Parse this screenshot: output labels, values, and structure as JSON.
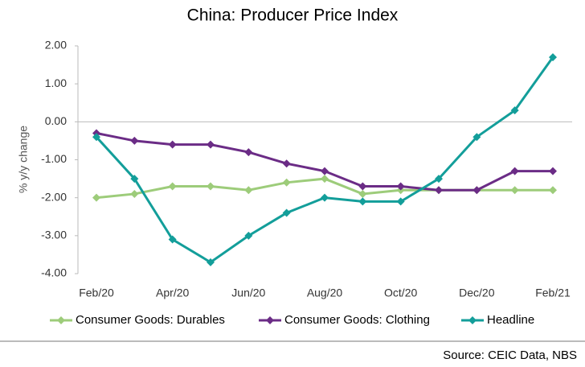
{
  "chart_data": {
    "type": "line",
    "title": "China: Producer Price Index",
    "y_label": "% y/y change",
    "source": "Source: CEIC Data, NBS",
    "categories": [
      "Feb/20",
      null,
      "Apr/20",
      null,
      "Jun/20",
      null,
      "Aug/20",
      null,
      "Oct/20",
      null,
      "Dec/20",
      null,
      "Feb/21"
    ],
    "series": [
      {
        "name": "Consumer Goods: Durables",
        "color": "#9dcc7a",
        "values": [
          -2.0,
          -1.9,
          -1.7,
          -1.7,
          -1.8,
          -1.6,
          -1.5,
          -1.9,
          -1.8,
          -1.8,
          -1.8,
          -1.8,
          -1.8
        ]
      },
      {
        "name": "Consumer Goods: Clothing",
        "color": "#6b2c86",
        "values": [
          -0.3,
          -0.5,
          -0.6,
          -0.6,
          -0.8,
          -1.1,
          -1.3,
          -1.7,
          -1.7,
          -1.8,
          -1.8,
          -1.3,
          -1.3
        ]
      },
      {
        "name": "Headline",
        "color": "#139e9a",
        "values": [
          -0.4,
          -1.5,
          -3.1,
          -3.7,
          -3.0,
          -2.4,
          -2.0,
          -2.1,
          -2.1,
          -1.5,
          -0.4,
          0.3,
          1.7
        ]
      }
    ],
    "ylim": [
      -4,
      2
    ],
    "yticks": [
      {
        "value": 2,
        "label": "2.00"
      },
      {
        "value": 1,
        "label": "1.00"
      },
      {
        "value": 0,
        "label": "0.00"
      },
      {
        "value": -1,
        "label": "-1.00"
      },
      {
        "value": -2,
        "label": "-2.00"
      },
      {
        "value": -3,
        "label": "-3.00"
      },
      {
        "value": -4,
        "label": "-4.00"
      }
    ],
    "grid": false,
    "legend": "bottom"
  }
}
